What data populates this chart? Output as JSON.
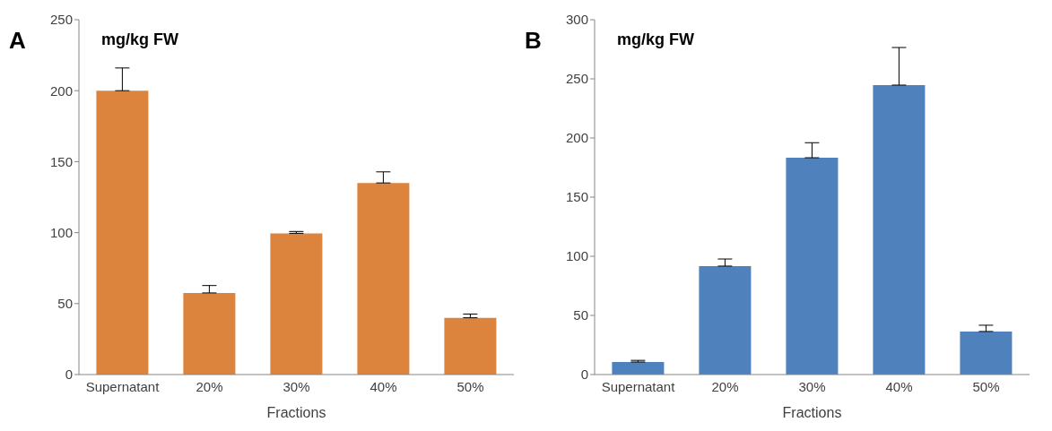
{
  "chart_data": [
    {
      "type": "bar",
      "title": "A",
      "ylabel": "mg/kg FW",
      "xlabel": "Fractions",
      "categories": [
        "Supernatant",
        "20%",
        "30%",
        "40%",
        "50%"
      ],
      "values": [
        200,
        57.5,
        99.5,
        135,
        40
      ],
      "errors": [
        [
          200,
          216
        ],
        [
          57.5,
          62.7
        ],
        [
          99.5,
          100.8
        ],
        [
          135,
          142.8
        ],
        [
          40,
          42.6
        ]
      ],
      "color": "#dc843e",
      "ylim": [
        0,
        250
      ],
      "yticks": [
        0,
        50,
        100,
        150,
        200,
        250
      ],
      "grid": false,
      "legend": false
    },
    {
      "type": "bar",
      "title": "B",
      "ylabel": "mg/kg FW",
      "xlabel": "Fractions",
      "categories": [
        "Supernatant",
        "20%",
        "30%",
        "40%",
        "50%"
      ],
      "values": [
        10.6,
        91.7,
        183.3,
        244.7,
        36.4
      ],
      "errors": [
        [
          10.6,
          12
        ],
        [
          91.7,
          97.7
        ],
        [
          183.3,
          196
        ],
        [
          244.7,
          276.5
        ],
        [
          36.4,
          41.7
        ]
      ],
      "color": "#4f81bd",
      "ylim": [
        0,
        300
      ],
      "yticks": [
        0,
        50,
        100,
        150,
        200,
        250,
        300
      ],
      "grid": false,
      "legend": false
    }
  ]
}
